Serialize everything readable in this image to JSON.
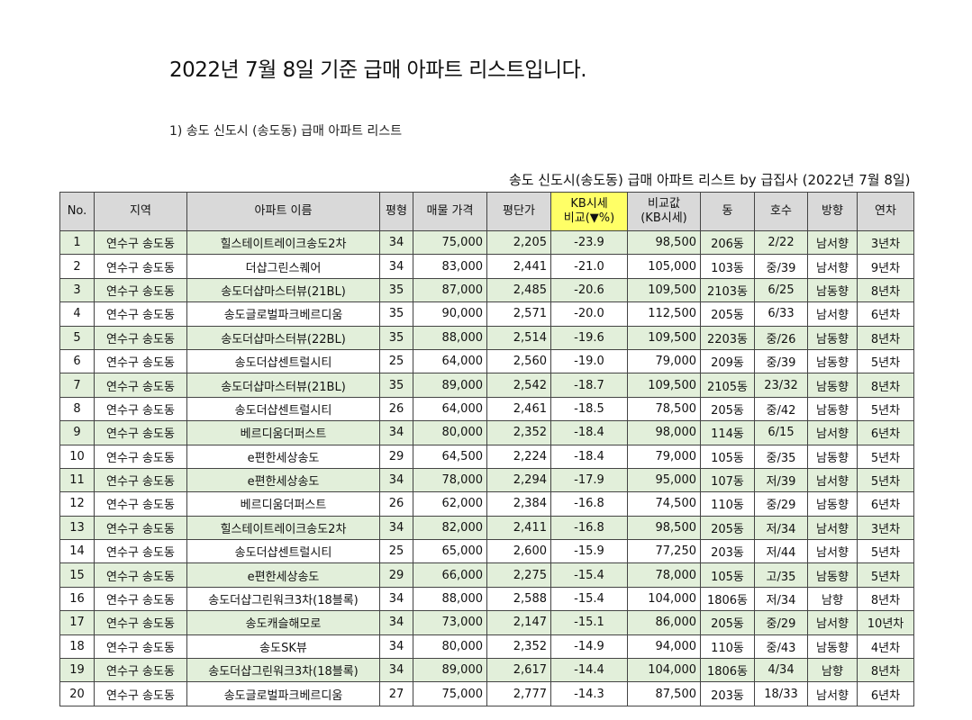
{
  "title": "2022년 7월 8일 기준 급매 아파트 리스트입니다.",
  "subtitle": "1) 송도 신도시 (송도동) 급매 아파트 리스트",
  "table": {
    "caption": "송도 신도시(송도동) 급매 아파트 리스트 by 급집사 (2022년 7월 8일)",
    "headers": [
      "No.",
      "지역",
      "아파트 이름",
      "평형",
      "매물 가격",
      "평단가",
      "KB시세\n비교(▼%)",
      "비교값\n(KB시세)",
      "동",
      "호수",
      "방향",
      "연차"
    ],
    "rows": [
      [
        "1",
        "연수구 송도동",
        "힐스테이트레이크송도2차",
        "34",
        "75,000",
        "2,205",
        "-23.9",
        "98,500",
        "206동",
        "2/22",
        "남서향",
        "3년차"
      ],
      [
        "2",
        "연수구 송도동",
        "더샵그린스퀘어",
        "34",
        "83,000",
        "2,441",
        "-21.0",
        "105,000",
        "103동",
        "중/39",
        "남서향",
        "9년차"
      ],
      [
        "3",
        "연수구 송도동",
        "송도더샵마스터뷰(21BL)",
        "35",
        "87,000",
        "2,485",
        "-20.6",
        "109,500",
        "2103동",
        "6/25",
        "남동향",
        "8년차"
      ],
      [
        "4",
        "연수구 송도동",
        "송도글로벌파크베르디움",
        "35",
        "90,000",
        "2,571",
        "-20.0",
        "112,500",
        "205동",
        "6/33",
        "남서향",
        "6년차"
      ],
      [
        "5",
        "연수구 송도동",
        "송도더샵마스터뷰(22BL)",
        "35",
        "88,000",
        "2,514",
        "-19.6",
        "109,500",
        "2203동",
        "중/26",
        "남동향",
        "8년차"
      ],
      [
        "6",
        "연수구 송도동",
        "송도더샵센트럴시티",
        "25",
        "64,000",
        "2,560",
        "-19.0",
        "79,000",
        "209동",
        "중/39",
        "남동향",
        "5년차"
      ],
      [
        "7",
        "연수구 송도동",
        "송도더샵마스터뷰(21BL)",
        "35",
        "89,000",
        "2,542",
        "-18.7",
        "109,500",
        "2105동",
        "23/32",
        "남동향",
        "8년차"
      ],
      [
        "8",
        "연수구 송도동",
        "송도더샵센트럴시티",
        "26",
        "64,000",
        "2,461",
        "-18.5",
        "78,500",
        "205동",
        "중/42",
        "남동향",
        "5년차"
      ],
      [
        "9",
        "연수구 송도동",
        "베르디움더퍼스트",
        "34",
        "80,000",
        "2,352",
        "-18.4",
        "98,000",
        "114동",
        "6/15",
        "남서향",
        "6년차"
      ],
      [
        "10",
        "연수구 송도동",
        "e편한세상송도",
        "29",
        "64,500",
        "2,224",
        "-18.4",
        "79,000",
        "105동",
        "중/35",
        "남동향",
        "5년차"
      ],
      [
        "11",
        "연수구 송도동",
        "e편한세상송도",
        "34",
        "78,000",
        "2,294",
        "-17.9",
        "95,000",
        "107동",
        "저/39",
        "남서향",
        "5년차"
      ],
      [
        "12",
        "연수구 송도동",
        "베르디움더퍼스트",
        "26",
        "62,000",
        "2,384",
        "-16.8",
        "74,500",
        "110동",
        "중/29",
        "남동향",
        "6년차"
      ],
      [
        "13",
        "연수구 송도동",
        "힐스테이트레이크송도2차",
        "34",
        "82,000",
        "2,411",
        "-16.8",
        "98,500",
        "205동",
        "저/34",
        "남서향",
        "3년차"
      ],
      [
        "14",
        "연수구 송도동",
        "송도더샵센트럴시티",
        "25",
        "65,000",
        "2,600",
        "-15.9",
        "77,250",
        "203동",
        "저/44",
        "남서향",
        "5년차"
      ],
      [
        "15",
        "연수구 송도동",
        "e편한세상송도",
        "29",
        "66,000",
        "2,275",
        "-15.4",
        "78,000",
        "105동",
        "고/35",
        "남동향",
        "5년차"
      ],
      [
        "16",
        "연수구 송도동",
        "송도더샵그린워크3차(18블록)",
        "34",
        "88,000",
        "2,588",
        "-15.4",
        "104,000",
        "1806동",
        "저/34",
        "남향",
        "8년차"
      ],
      [
        "17",
        "연수구 송도동",
        "송도캐슬해모로",
        "34",
        "73,000",
        "2,147",
        "-15.1",
        "86,000",
        "205동",
        "중/29",
        "남서향",
        "10년차"
      ],
      [
        "18",
        "연수구 송도동",
        "송도SK뷰",
        "34",
        "80,000",
        "2,352",
        "-14.9",
        "94,000",
        "110동",
        "중/43",
        "남동향",
        "4년차"
      ],
      [
        "19",
        "연수구 송도동",
        "송도더샵그린워크3차(18블록)",
        "34",
        "89,000",
        "2,617",
        "-14.4",
        "104,000",
        "1806동",
        "4/34",
        "남향",
        "8년차"
      ],
      [
        "20",
        "연수구 송도동",
        "송도글로벌파크베르디움",
        "27",
        "75,000",
        "2,777",
        "-14.3",
        "87,500",
        "203동",
        "18/33",
        "남서향",
        "6년차"
      ]
    ]
  },
  "colors": {
    "row_highlight": "#e2efda",
    "header_bg": "#d9d9d9",
    "kb_header_bg": "#ffff66"
  }
}
